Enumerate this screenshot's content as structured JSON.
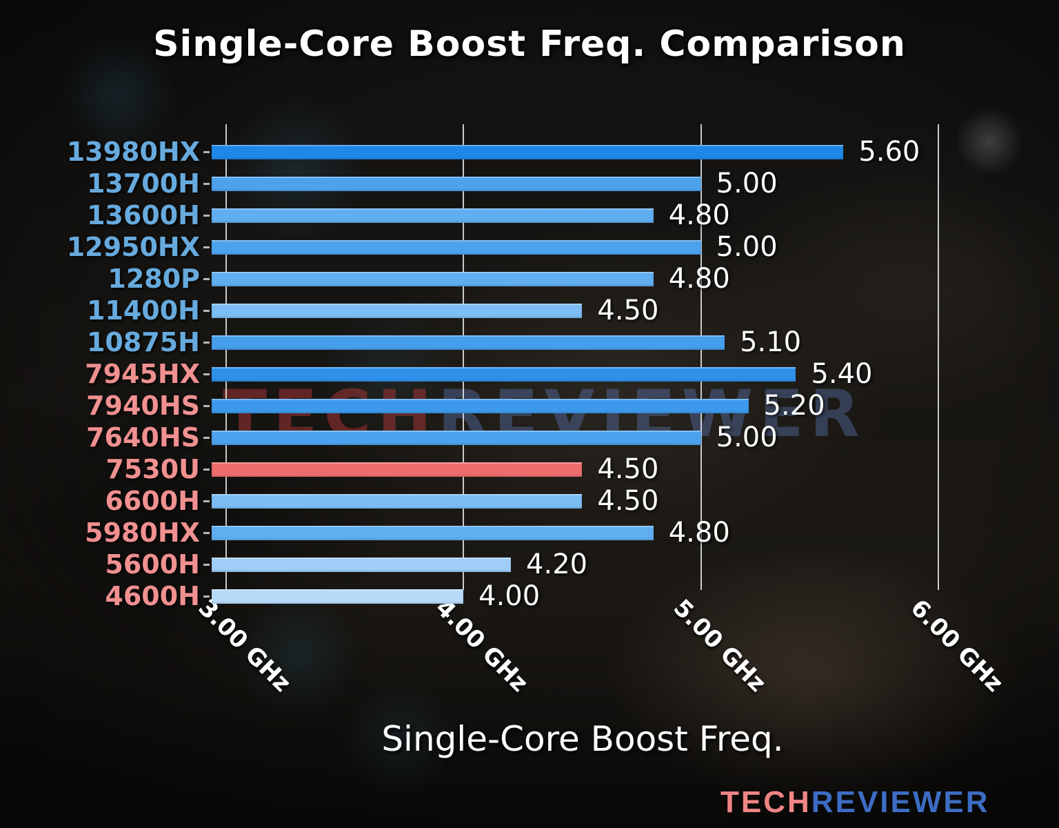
{
  "title": "Single-Core Boost Freq. Comparison",
  "xlabel": "Single-Core Boost Freq.",
  "watermark": {
    "tech": "TECH",
    "reviewer": "REVIEWER"
  },
  "logo": {
    "tech": "TECH",
    "reviewer": "REVIEWER"
  },
  "colors": {
    "intel_label": "#67aade",
    "amd_label": "#f09090",
    "highlight_bar": "#ed6d6d",
    "logo_tech": "#ef8585",
    "logo_reviewer": "#3d6cc3",
    "value_text": "#ffffff",
    "grid_line": "#e4e4e4"
  },
  "chart_data": {
    "type": "bar",
    "orientation": "horizontal",
    "title": "Single-Core Boost Freq. Comparison",
    "xlabel": "Single-Core Boost Freq.",
    "ylabel": "",
    "unit": "GHz",
    "xlim": [
      2.94,
      6.2
    ],
    "grid": true,
    "legend": "none",
    "x_ticks": [
      {
        "value": 3.0,
        "label": "3.00 GHz"
      },
      {
        "value": 4.0,
        "label": "4.00 GHz"
      },
      {
        "value": 5.0,
        "label": "5.00 GHz"
      },
      {
        "value": 6.0,
        "label": "6.00 GHz"
      }
    ],
    "categories": [
      "13980HX",
      "13700H",
      "13600H",
      "12950HX",
      "1280P",
      "11400H",
      "10875H",
      "7945HX",
      "7940HS",
      "7640HS",
      "7530U",
      "6600H",
      "5980HX",
      "5600H",
      "4600H"
    ],
    "values": [
      5.6,
      5.0,
      4.8,
      5.0,
      4.8,
      4.5,
      5.1,
      5.4,
      5.2,
      5.0,
      4.5,
      4.5,
      4.8,
      4.2,
      4.0
    ],
    "bars": [
      {
        "category": "13980HX",
        "value": 5.6,
        "display": "5.60",
        "brand": "intel",
        "highlight": false,
        "bar_color": "#1e87e7",
        "label_color": "#67aade"
      },
      {
        "category": "13700H",
        "value": 5.0,
        "display": "5.00",
        "brand": "intel",
        "highlight": false,
        "bar_color": "#4da2ed",
        "label_color": "#67aade"
      },
      {
        "category": "13600H",
        "value": 4.8,
        "display": "4.80",
        "brand": "intel",
        "highlight": false,
        "bar_color": "#60adef",
        "label_color": "#67aade"
      },
      {
        "category": "12950HX",
        "value": 5.0,
        "display": "5.00",
        "brand": "intel",
        "highlight": false,
        "bar_color": "#4da2ed",
        "label_color": "#67aade"
      },
      {
        "category": "1280P",
        "value": 4.8,
        "display": "4.80",
        "brand": "intel",
        "highlight": false,
        "bar_color": "#60adef",
        "label_color": "#67aade"
      },
      {
        "category": "11400H",
        "value": 4.5,
        "display": "4.50",
        "brand": "intel",
        "highlight": false,
        "bar_color": "#7cbdf3",
        "label_color": "#67aade"
      },
      {
        "category": "10875H",
        "value": 5.1,
        "display": "5.10",
        "brand": "intel",
        "highlight": false,
        "bar_color": "#459dec",
        "label_color": "#67aade"
      },
      {
        "category": "7945HX",
        "value": 5.4,
        "display": "5.40",
        "brand": "amd",
        "highlight": false,
        "bar_color": "#2e90e9",
        "label_color": "#f09090"
      },
      {
        "category": "7940HS",
        "value": 5.2,
        "display": "5.20",
        "brand": "amd",
        "highlight": false,
        "bar_color": "#3d99eb",
        "label_color": "#f09090"
      },
      {
        "category": "7640HS",
        "value": 5.0,
        "display": "5.00",
        "brand": "amd",
        "highlight": false,
        "bar_color": "#4da2ed",
        "label_color": "#f09090"
      },
      {
        "category": "7530U",
        "value": 4.5,
        "display": "4.50",
        "brand": "amd",
        "highlight": true,
        "bar_color": "#ed6d6d",
        "label_color": "#f09090"
      },
      {
        "category": "6600H",
        "value": 4.5,
        "display": "4.50",
        "brand": "amd",
        "highlight": false,
        "bar_color": "#7cbdf3",
        "label_color": "#f09090"
      },
      {
        "category": "5980HX",
        "value": 4.8,
        "display": "4.80",
        "brand": "amd",
        "highlight": false,
        "bar_color": "#60adef",
        "label_color": "#f09090"
      },
      {
        "category": "5600H",
        "value": 4.2,
        "display": "4.20",
        "brand": "amd",
        "highlight": false,
        "bar_color": "#9fcdf7",
        "label_color": "#f09090"
      },
      {
        "category": "4600H",
        "value": 4.0,
        "display": "4.00",
        "brand": "amd",
        "highlight": false,
        "bar_color": "#b7daf9",
        "label_color": "#f09090"
      }
    ]
  }
}
